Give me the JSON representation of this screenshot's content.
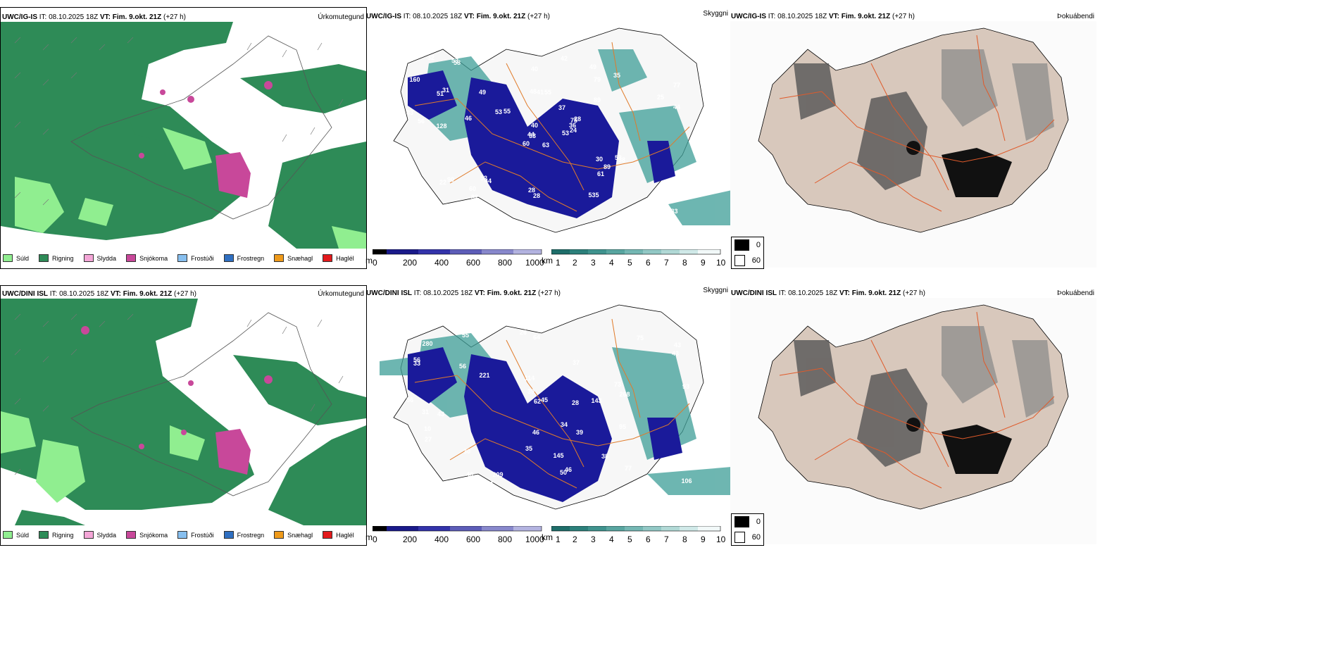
{
  "rows": [
    {
      "precip_header": {
        "model": "UWC/IG-IS",
        "it": "IT: 08.10.2025 18Z",
        "vt_label": "VT: Fim. 9.okt. 21Z",
        "lead": "(+27 h)",
        "field": "Úrkomutegund"
      },
      "cloud_header": {
        "model": "UWC/IG-IS",
        "it": "IT: 08.10.2025 18Z",
        "vt_label": "VT: Fim. 9.okt. 21Z",
        "lead": "(+27 h)",
        "field": "Skyggni"
      },
      "fog_header": {
        "model": "UWC/IG-IS",
        "it": "IT: 08.10.2025 18Z",
        "vt_label": "VT: Fim. 9.okt. 21Z",
        "lead": "(+27 h)",
        "field": "Þokuábendi"
      },
      "labels": [
        "63",
        "51",
        "53",
        "63",
        "75",
        "44",
        "49",
        "55",
        "79",
        "53",
        "58",
        "283",
        "128",
        "77",
        "60",
        "89",
        "65",
        "48",
        "37",
        "90",
        "55",
        "39",
        "82",
        "41",
        "28",
        "38",
        "31",
        "40",
        "56",
        "30",
        "44",
        "44",
        "28",
        "40",
        "49",
        "35",
        "52",
        "65",
        "62",
        "53",
        "42",
        "53",
        "46",
        "61",
        "63",
        "33",
        "36",
        "11",
        "28",
        "24",
        "22",
        "25",
        "160",
        "89",
        "535",
        "60",
        "53",
        "32"
      ]
    },
    {
      "precip_header": {
        "model": "UWC/DINI ISL",
        "it": "IT: 08.10.2025 18Z",
        "vt_label": "VT: Fim. 9.okt. 21Z",
        "lead": "(+27 h)",
        "field": "Úrkomutegund"
      },
      "cloud_header": {
        "model": "UWC/DINI ISL",
        "it": "IT: 08.10.2025 18Z",
        "vt_label": "VT: Fim. 9.okt. 21Z",
        "lead": "(+27 h)",
        "field": "Skyggni"
      },
      "fog_header": {
        "model": "UWC/DINI ISL",
        "it": "IT: 08.10.2025 18Z",
        "vt_label": "VT: Fim. 9.okt. 21Z",
        "lead": "(+27 h)",
        "field": "Þokuábendi"
      },
      "labels": [
        "56",
        "64",
        "73",
        "43",
        "56",
        "86",
        "43",
        "37",
        "114",
        "75",
        "45",
        "95",
        "26",
        "33",
        "56",
        "30",
        "46",
        "31",
        "34",
        "35",
        "38",
        "77",
        "43",
        "39",
        "46",
        "62",
        "39",
        "55",
        "31",
        "50",
        "10",
        "33",
        "28",
        "23",
        "23",
        "27",
        "268",
        "280",
        "209",
        "221",
        "145",
        "143",
        "106",
        "93",
        "46"
      ]
    }
  ],
  "precip_legend": [
    {
      "label": "Súld",
      "color": "#90ee90"
    },
    {
      "label": "Rigning",
      "color": "#2e8b57"
    },
    {
      "label": "Slydda",
      "color": "#f4a6d7"
    },
    {
      "label": "Snjókoma",
      "color": "#c8489a"
    },
    {
      "label": "Frostúði",
      "color": "#87bfef"
    },
    {
      "label": "Frostregn",
      "color": "#2f6fc1"
    },
    {
      "label": "Snæhagl",
      "color": "#ef9a1a"
    },
    {
      "label": "Haglél",
      "color": "#e31a1c"
    }
  ],
  "height_bar": {
    "unit": "m",
    "ticks": [
      "0",
      "200",
      "400",
      "600",
      "800",
      "1000"
    ]
  },
  "vis_bar": {
    "unit": "km",
    "ticks": [
      "1",
      "2",
      "3",
      "4",
      "5",
      "6",
      "7",
      "8",
      "9",
      "10"
    ]
  },
  "fog_legend": [
    {
      "label": "0",
      "color": "#000000"
    },
    {
      "label": "60",
      "color": "#ffffff"
    }
  ]
}
